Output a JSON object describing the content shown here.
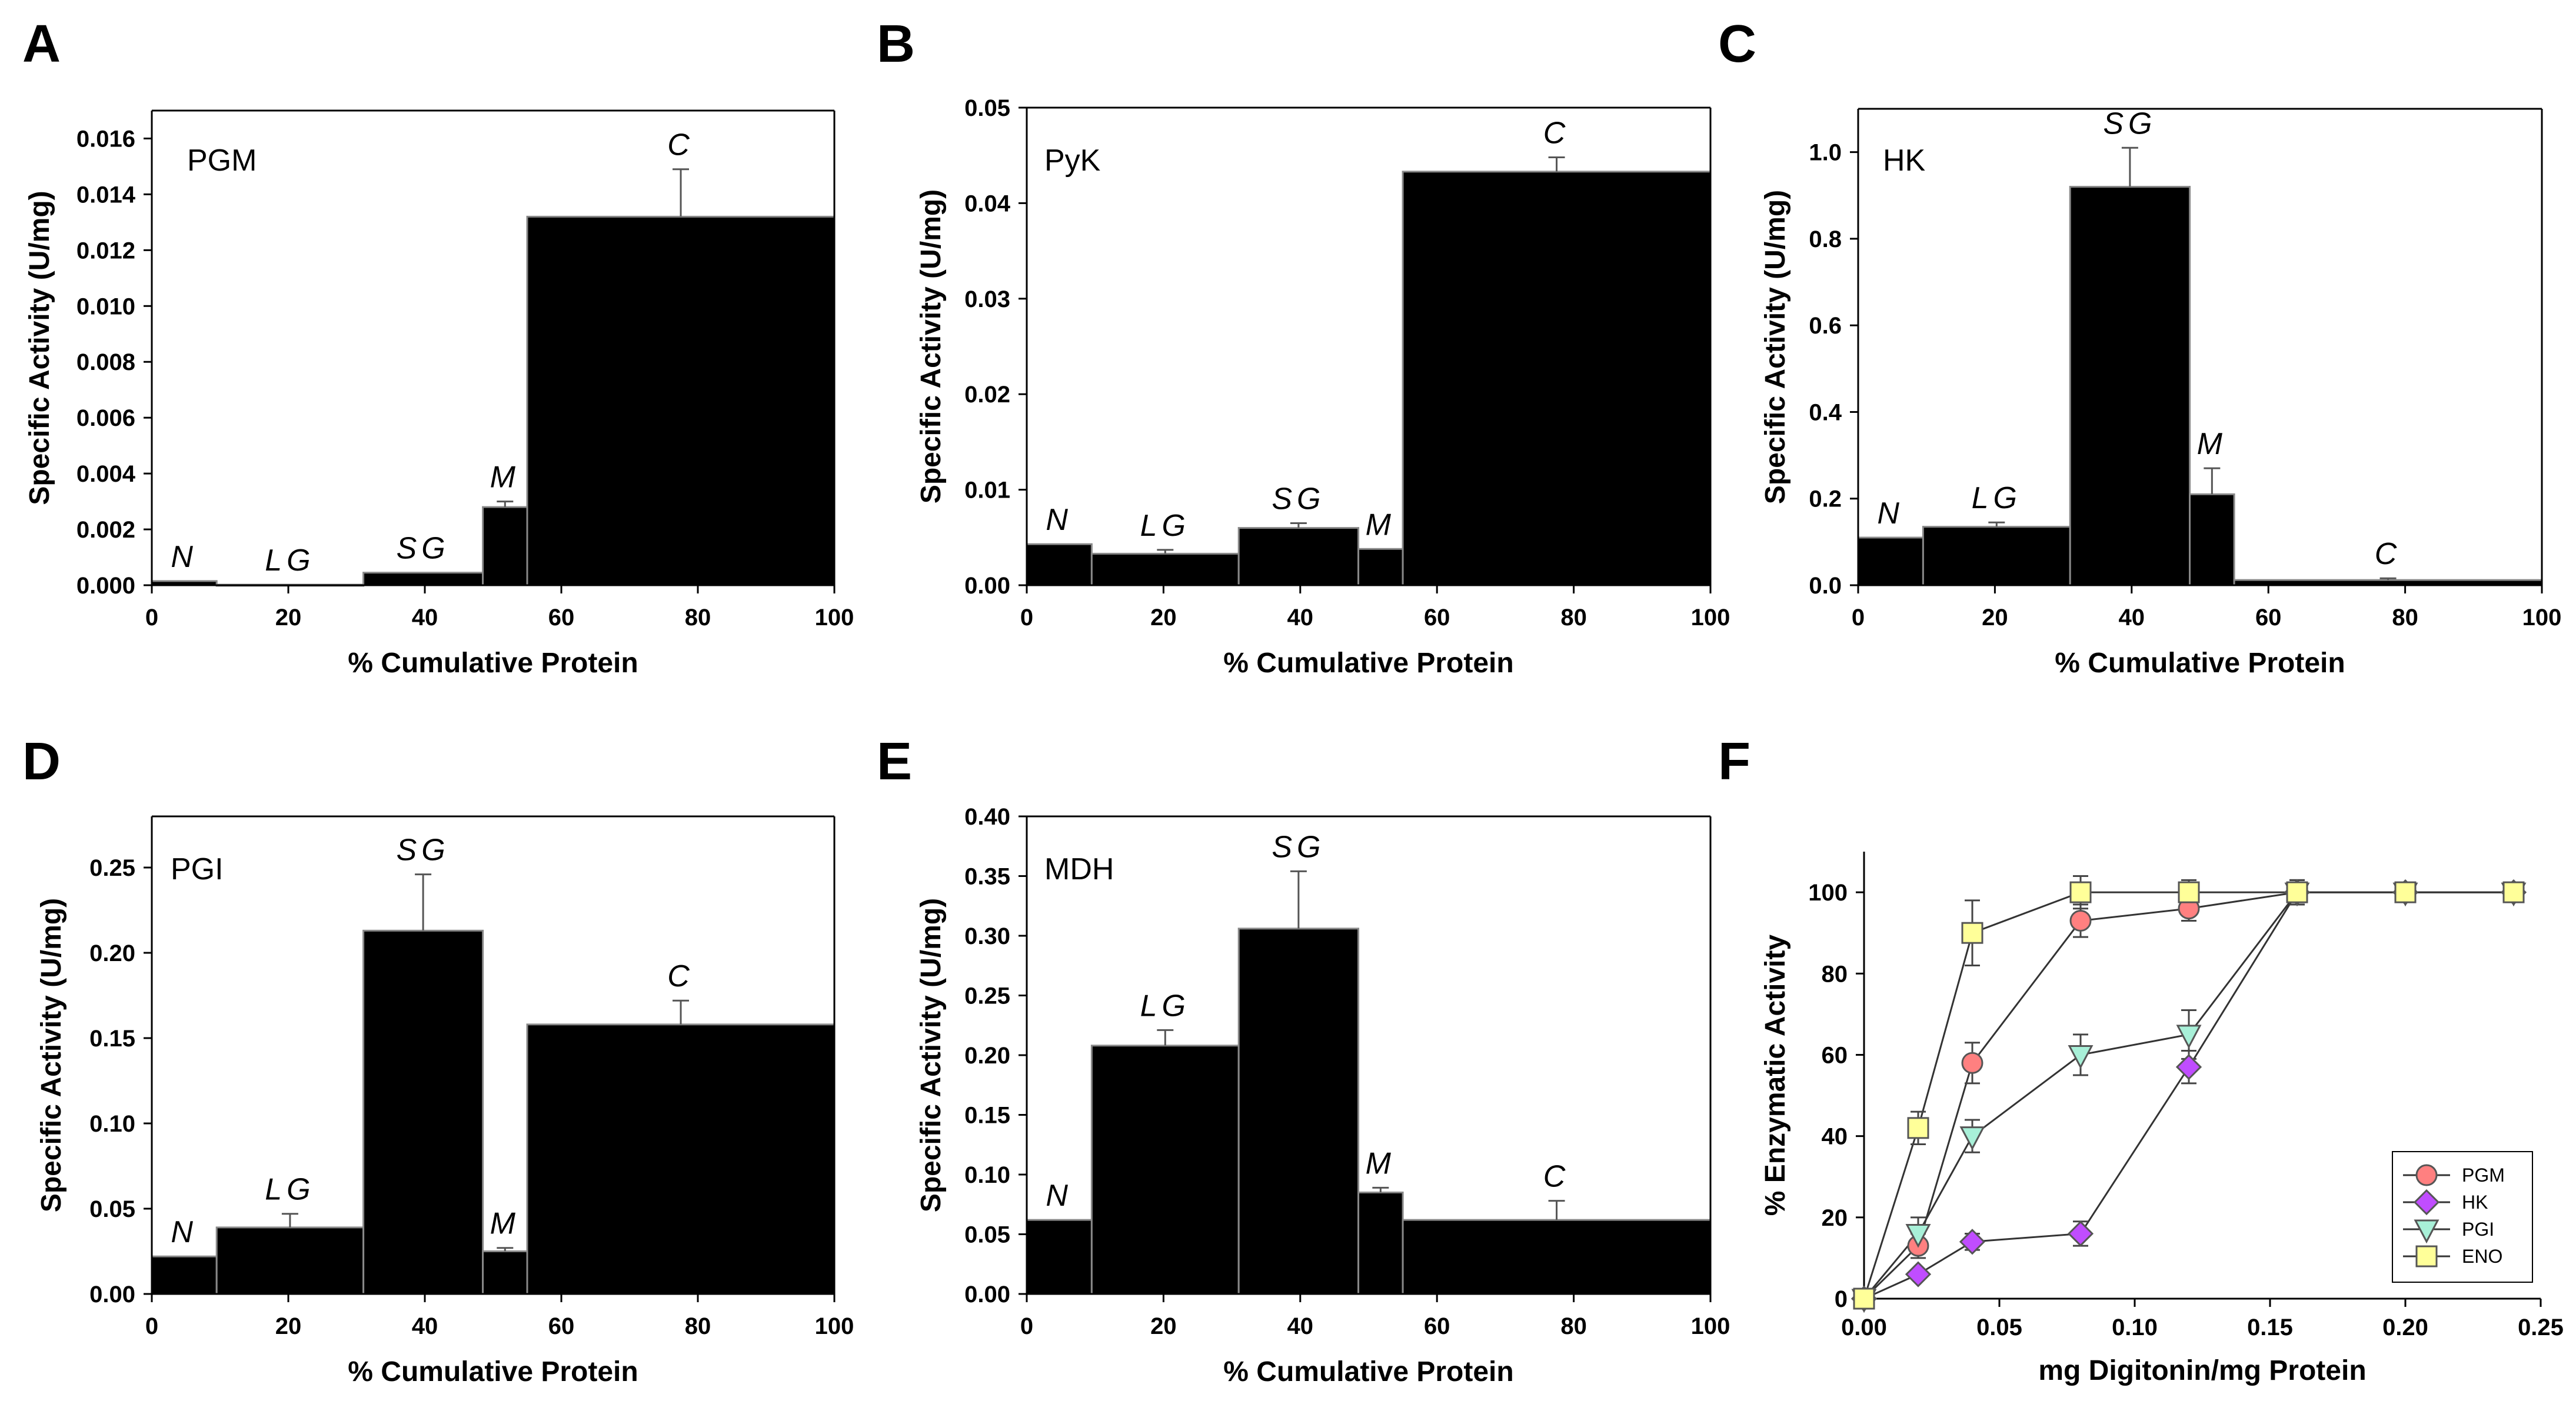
{
  "chart_data": [
    {
      "panel": "A",
      "type": "bar",
      "title": "PGM",
      "xlabel": "% Cumulative Protein",
      "ylabel": "Specific Activity (U/mg)",
      "xlim": [
        0,
        100
      ],
      "ylim": [
        0,
        0.017
      ],
      "xticks": [
        "0",
        "20",
        "40",
        "60",
        "80",
        "100"
      ],
      "yticks": [
        "0.000",
        "0.002",
        "0.004",
        "0.006",
        "0.008",
        "0.010",
        "0.012",
        "0.014",
        "0.016"
      ],
      "bars": [
        {
          "label": "N",
          "x0": 0,
          "x1": 9.5,
          "value": 0.00015,
          "error": 0.0
        },
        {
          "label": "LG",
          "x0": 9.5,
          "x1": 31,
          "value": 2e-05,
          "error": 0.0
        },
        {
          "label": "SG",
          "x0": 31,
          "x1": 48.5,
          "value": 0.00045,
          "error": 0.0
        },
        {
          "label": "M",
          "x0": 48.5,
          "x1": 55,
          "value": 0.0028,
          "error": 0.0002
        },
        {
          "label": "C",
          "x0": 55,
          "x1": 100,
          "value": 0.0132,
          "error": 0.0017
        }
      ]
    },
    {
      "panel": "B",
      "type": "bar",
      "title": "PyK",
      "xlabel": "% Cumulative Protein",
      "ylabel": "Specific Activity (U/mg)",
      "xlim": [
        0,
        100
      ],
      "ylim": [
        0,
        0.05
      ],
      "xticks": [
        "0",
        "20",
        "40",
        "60",
        "80",
        "100"
      ],
      "yticks": [
        "0.00",
        "0.01",
        "0.02",
        "0.03",
        "0.04",
        "0.05"
      ],
      "bars": [
        {
          "label": "N",
          "x0": 0,
          "x1": 9.5,
          "value": 0.0043,
          "error": 0.0
        },
        {
          "label": "LG",
          "x0": 9.5,
          "x1": 31,
          "value": 0.0033,
          "error": 0.0004
        },
        {
          "label": "SG",
          "x0": 31,
          "x1": 48.5,
          "value": 0.006,
          "error": 0.0005
        },
        {
          "label": "M",
          "x0": 48.5,
          "x1": 55,
          "value": 0.0038,
          "error": 0.0
        },
        {
          "label": "C",
          "x0": 55,
          "x1": 100,
          "value": 0.0433,
          "error": 0.0015
        }
      ]
    },
    {
      "panel": "C",
      "type": "bar",
      "title": "HK",
      "xlabel": "% Cumulative Protein",
      "ylabel": "Specific Activity (U/mg)",
      "xlim": [
        0,
        100
      ],
      "ylim": [
        0,
        1.1
      ],
      "xticks": [
        "0",
        "20",
        "40",
        "60",
        "80",
        "100"
      ],
      "yticks": [
        "0.0",
        "0.2",
        "0.4",
        "0.6",
        "0.8",
        "1.0"
      ],
      "bars": [
        {
          "label": "N",
          "x0": 0,
          "x1": 9.5,
          "value": 0.11,
          "error": 0.0
        },
        {
          "label": "LG",
          "x0": 9.5,
          "x1": 31,
          "value": 0.135,
          "error": 0.01
        },
        {
          "label": "SG",
          "x0": 31,
          "x1": 48.5,
          "value": 0.92,
          "error": 0.09
        },
        {
          "label": "M",
          "x0": 48.5,
          "x1": 55,
          "value": 0.21,
          "error": 0.06
        },
        {
          "label": "C",
          "x0": 55,
          "x1": 100,
          "value": 0.012,
          "error": 0.004
        }
      ]
    },
    {
      "panel": "D",
      "type": "bar",
      "title": "PGI",
      "xlabel": "% Cumulative Protein",
      "ylabel": "Specific Activity (U/mg)",
      "xlim": [
        0,
        100
      ],
      "ylim": [
        0,
        0.28
      ],
      "xticks": [
        "0",
        "20",
        "40",
        "60",
        "80",
        "100"
      ],
      "yticks": [
        "0.00",
        "0.05",
        "0.10",
        "0.15",
        "0.20",
        "0.25"
      ],
      "bars": [
        {
          "label": "N",
          "x0": 0,
          "x1": 9.5,
          "value": 0.022,
          "error": 0.0
        },
        {
          "label": "LG",
          "x0": 9.5,
          "x1": 31,
          "value": 0.039,
          "error": 0.008
        },
        {
          "label": "SG",
          "x0": 31,
          "x1": 48.5,
          "value": 0.213,
          "error": 0.033
        },
        {
          "label": "M",
          "x0": 48.5,
          "x1": 55,
          "value": 0.025,
          "error": 0.002
        },
        {
          "label": "C",
          "x0": 55,
          "x1": 100,
          "value": 0.158,
          "error": 0.014
        }
      ]
    },
    {
      "panel": "E",
      "type": "bar",
      "title": "MDH",
      "xlabel": "% Cumulative Protein",
      "ylabel": "Specific Activity (U/mg)",
      "xlim": [
        0,
        100
      ],
      "ylim": [
        0,
        0.4
      ],
      "xticks": [
        "0",
        "20",
        "40",
        "60",
        "80",
        "100"
      ],
      "yticks": [
        "0.00",
        "0.05",
        "0.10",
        "0.15",
        "0.20",
        "0.25",
        "0.30",
        "0.35",
        "0.40"
      ],
      "bars": [
        {
          "label": "N",
          "x0": 0,
          "x1": 9.5,
          "value": 0.062,
          "error": 0.0
        },
        {
          "label": "LG",
          "x0": 9.5,
          "x1": 31,
          "value": 0.208,
          "error": 0.013
        },
        {
          "label": "SG",
          "x0": 31,
          "x1": 48.5,
          "value": 0.306,
          "error": 0.048
        },
        {
          "label": "M",
          "x0": 48.5,
          "x1": 55,
          "value": 0.085,
          "error": 0.004
        },
        {
          "label": "C",
          "x0": 55,
          "x1": 100,
          "value": 0.062,
          "error": 0.016
        }
      ]
    },
    {
      "panel": "F",
      "type": "line",
      "title": "",
      "xlabel": "mg Digitonin/mg Protein",
      "ylabel": "% Enzymatic Activity",
      "xlim": [
        0,
        0.25
      ],
      "ylim": [
        0,
        110
      ],
      "xticks": [
        "0.00",
        "0.05",
        "0.10",
        "0.15",
        "0.20",
        "0.25"
      ],
      "yticks": [
        "0",
        "20",
        "40",
        "60",
        "80",
        "100"
      ],
      "legend_position": "bottom-right",
      "series": [
        {
          "name": "PGM",
          "marker": "circle",
          "color": "#ff8080",
          "x": [
            0,
            0.02,
            0.04,
            0.08,
            0.12,
            0.16,
            0.2,
            0.24
          ],
          "y": [
            0,
            13,
            58,
            93,
            96,
            100,
            100,
            100
          ],
          "error": [
            0,
            3,
            5,
            4,
            3,
            2,
            1,
            1
          ]
        },
        {
          "name": "HK",
          "marker": "diamond",
          "color": "#c04dff",
          "x": [
            0,
            0.02,
            0.04,
            0.08,
            0.12,
            0.16,
            0.2,
            0.24
          ],
          "y": [
            0,
            6,
            14,
            16,
            57,
            100,
            100,
            100
          ],
          "error": [
            0,
            1,
            2,
            3,
            4,
            2,
            1,
            1
          ]
        },
        {
          "name": "PGI",
          "marker": "triangle-down",
          "color": "#a8f0d8",
          "x": [
            0,
            0.02,
            0.04,
            0.08,
            0.12,
            0.16,
            0.2,
            0.24
          ],
          "y": [
            0,
            16,
            40,
            60,
            65,
            100,
            100,
            100
          ],
          "error": [
            0,
            4,
            4,
            5,
            6,
            3,
            1,
            1
          ]
        },
        {
          "name": "ENO",
          "marker": "square",
          "color": "#ffff99",
          "x": [
            0,
            0.02,
            0.04,
            0.08,
            0.12,
            0.16,
            0.2,
            0.24
          ],
          "y": [
            0,
            42,
            90,
            100,
            100,
            100,
            100,
            100
          ],
          "error": [
            0,
            4,
            8,
            4,
            3,
            3,
            1,
            1
          ]
        }
      ]
    }
  ]
}
